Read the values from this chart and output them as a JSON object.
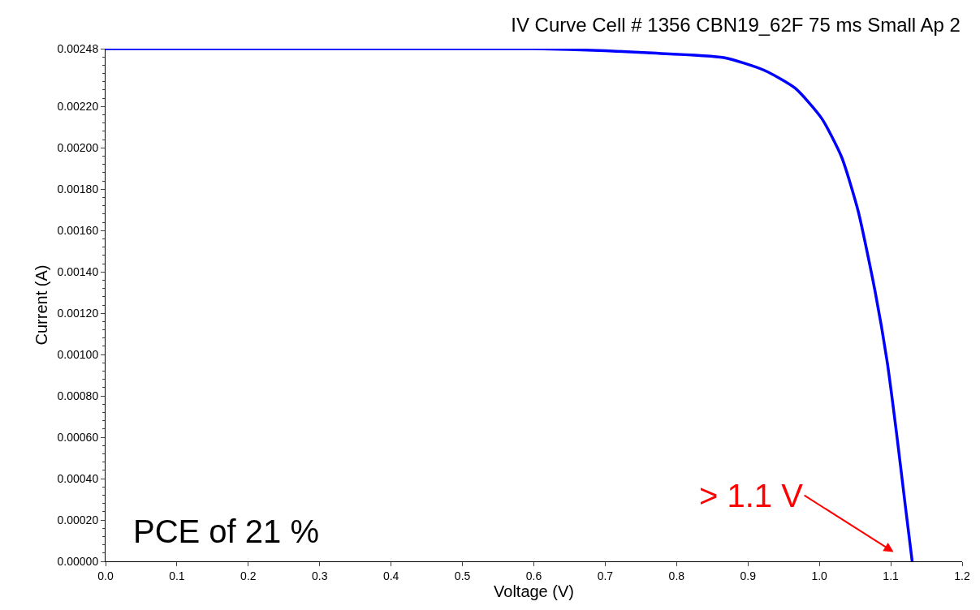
{
  "chart_data": {
    "type": "line",
    "title": "IV Curve Cell # 1356 CBN19_62F 75 ms Small Ap 2",
    "xlabel": "Voltage (V)",
    "ylabel": "Current (A)",
    "x": [
      0,
      0.1,
      0.2,
      0.3,
      0.4,
      0.5,
      0.6,
      0.7,
      0.759,
      0.866,
      0.923,
      0.966,
      1.003,
      1.031,
      1.054,
      1.078,
      1.095,
      1.108,
      1.12,
      1.13
    ],
    "series": [
      {
        "color": "#0000ff",
        "values": [
          0.00248,
          0.00248,
          0.00248,
          0.00248,
          0.00248,
          0.00248,
          0.00248,
          0.00247,
          0.00246,
          0.002437,
          0.002375,
          0.002289,
          0.002144,
          0.001957,
          0.001699,
          0.001307,
          0.000965,
          0.000623,
          0.00028,
          0
        ]
      }
    ],
    "xlim": [
      0,
      1.2
    ],
    "xticks": [
      {
        "value": 0,
        "label": "0.0"
      },
      0.1,
      0.2,
      0.3,
      0.4,
      0.5,
      0.6,
      0.7,
      0.8,
      0.9,
      {
        "value": 1,
        "label": "1.0"
      },
      1.1,
      1.2
    ],
    "ylim": [
      0,
      0.00248
    ],
    "yticks": [
      {
        "value": 0,
        "label": "0.00000"
      },
      {
        "value": 0.0002,
        "label": "0.00020"
      },
      {
        "value": 0.0004,
        "label": "0.00040"
      },
      {
        "value": 0.0006,
        "label": "0.00060"
      },
      {
        "value": 0.0008,
        "label": "0.00080"
      },
      {
        "value": 0.001,
        "label": "0.00100"
      },
      {
        "value": 0.0012,
        "label": "0.00120"
      },
      {
        "value": 0.0014,
        "label": "0.00140"
      },
      {
        "value": 0.0016,
        "label": "0.00160"
      },
      {
        "value": 0.0018,
        "label": "0.00180"
      },
      {
        "value": 0.002,
        "label": "0.00200"
      },
      {
        "value": 0.0022,
        "label": "0.00220"
      },
      0.00248
    ],
    "annotations": [
      "> 1.1 V",
      "PCE of 21 %"
    ],
    "legend": false,
    "marker": "none",
    "line_style": "solid"
  }
}
